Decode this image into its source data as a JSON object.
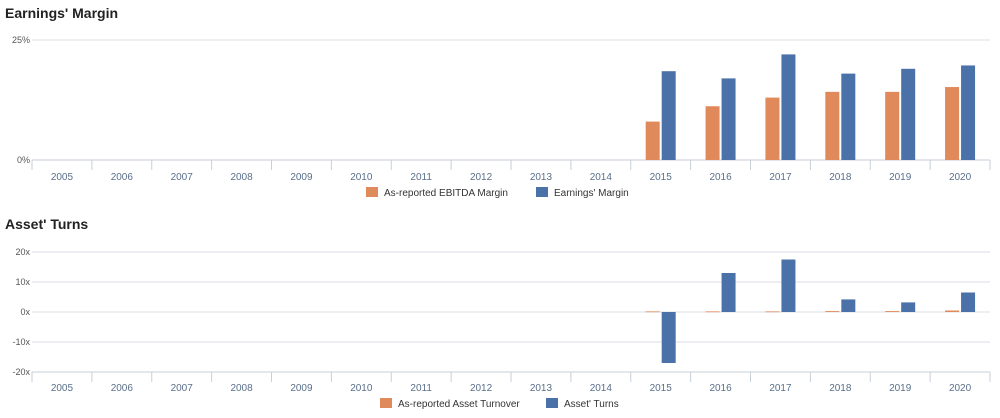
{
  "charts": [
    {
      "title": "Earnings' Margin",
      "legend": [
        "As-reported EBITDA Margin",
        "Earnings' Margin"
      ],
      "yticks": [
        "0%",
        "25%"
      ]
    },
    {
      "title": "Asset' Turns",
      "legend": [
        "As-reported Asset Turnover",
        "Asset' Turns"
      ],
      "yticks": [
        "-20x",
        "-10x",
        "0x",
        "10x",
        "20x"
      ]
    }
  ],
  "colors": {
    "orange": "#e0895a",
    "blue": "#4a72a8"
  },
  "chart_data": [
    {
      "type": "bar",
      "title": "Earnings' Margin",
      "categories": [
        "2005",
        "2006",
        "2007",
        "2008",
        "2009",
        "2010",
        "2011",
        "2012",
        "2013",
        "2014",
        "2015",
        "2016",
        "2017",
        "2018",
        "2019",
        "2020"
      ],
      "series": [
        {
          "name": "As-reported EBITDA Margin",
          "values": [
            null,
            null,
            null,
            null,
            null,
            null,
            null,
            null,
            null,
            null,
            8,
            11.2,
            13,
            14.2,
            14.2,
            15.2
          ]
        },
        {
          "name": "Earnings' Margin",
          "values": [
            null,
            null,
            null,
            null,
            null,
            null,
            null,
            null,
            null,
            null,
            18.5,
            17,
            22,
            18,
            19,
            19.7
          ]
        }
      ],
      "ylim": [
        0,
        25
      ],
      "legend_position": "bottom"
    },
    {
      "type": "bar",
      "title": "Asset' Turns",
      "categories": [
        "2005",
        "2006",
        "2007",
        "2008",
        "2009",
        "2010",
        "2011",
        "2012",
        "2013",
        "2014",
        "2015",
        "2016",
        "2017",
        "2018",
        "2019",
        "2020"
      ],
      "series": [
        {
          "name": "As-reported Asset Turnover",
          "values": [
            null,
            null,
            null,
            null,
            null,
            null,
            null,
            null,
            null,
            null,
            0.2,
            0.2,
            0.2,
            0.3,
            0.3,
            0.5
          ]
        },
        {
          "name": "Asset' Turns",
          "values": [
            null,
            null,
            null,
            null,
            null,
            null,
            null,
            null,
            null,
            null,
            -17,
            13,
            17.5,
            4.2,
            3.2,
            6.5
          ]
        }
      ],
      "ylim": [
        -20,
        20
      ],
      "legend_position": "bottom"
    }
  ]
}
